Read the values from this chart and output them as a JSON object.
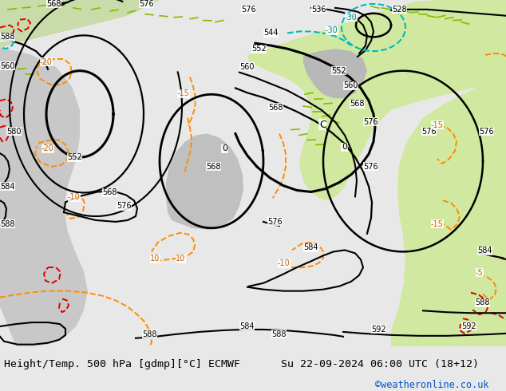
{
  "left_label": "Height/Temp. 500 hPa [gdmp][°C] ECMWF",
  "right_label": "Su 22-09-2024 06:00 UTC (18+12)",
  "copyright": "©weatheronline.co.uk",
  "copyright_color": "#0055cc",
  "land_color": "#c8dba8",
  "gray_color": "#b8b8b8",
  "light_green": "#d0e8a0",
  "bg_label": "#e8e8e8"
}
